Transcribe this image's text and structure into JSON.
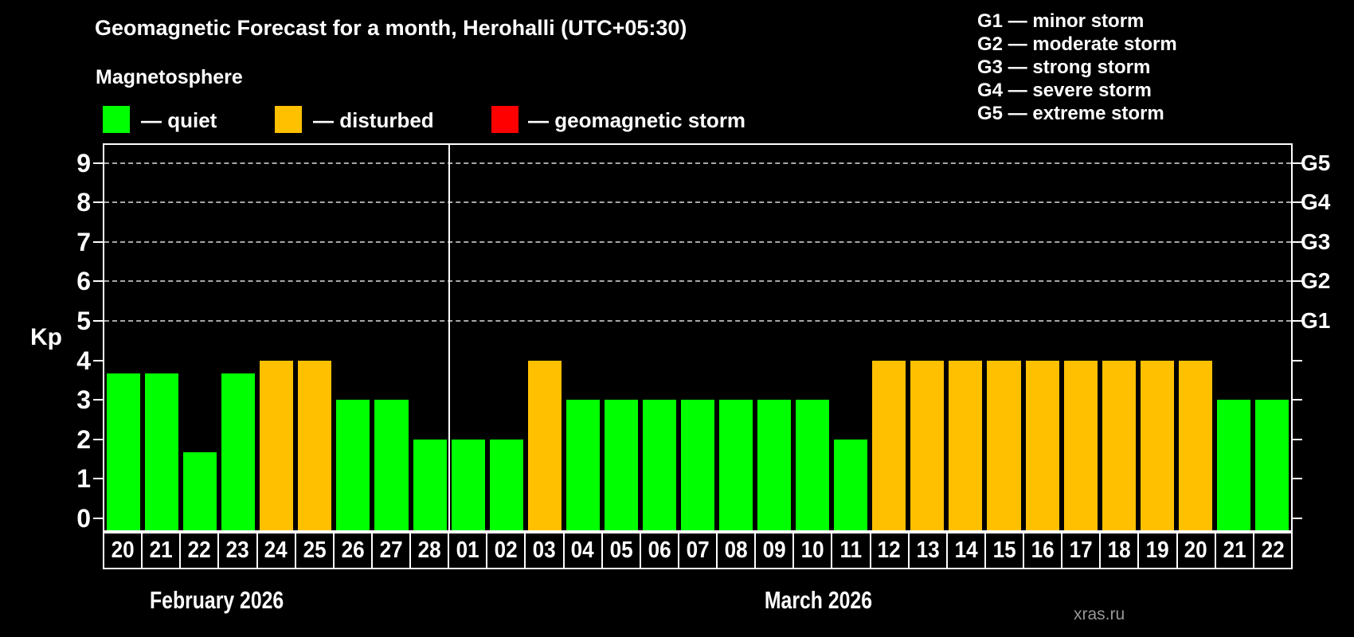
{
  "title": "Geomagnetic Forecast for a month, Herohalli (UTC+05:30)",
  "subtitle": "Magnetosphere",
  "legend": {
    "items": [
      {
        "key": "quiet",
        "label": "— quiet",
        "color": "#00ff00"
      },
      {
        "key": "disturbed",
        "label": "— disturbed",
        "color": "#ffc000"
      },
      {
        "key": "storm",
        "label": "— geomagnetic storm",
        "color": "#ff0000"
      }
    ]
  },
  "storm_scale": [
    "G1 — minor storm",
    "G2 — moderate storm",
    "G3 — strong storm",
    "G4 — severe storm",
    "G5 — extreme storm"
  ],
  "watermark": "xras.ru",
  "chart_data": {
    "type": "bar",
    "title": "Geomagnetic Forecast for a month, Herohalli (UTC+05:30)",
    "ylabel": "Kp",
    "ylim": [
      0,
      9
    ],
    "yticks": [
      0,
      1,
      2,
      3,
      4,
      5,
      6,
      7,
      8,
      9
    ],
    "gridlines": [
      5,
      6,
      7,
      8,
      9
    ],
    "grid_style": "dashed",
    "legend_position": "top",
    "right_axis_labels": [
      {
        "level": 5,
        "label": "G1"
      },
      {
        "level": 6,
        "label": "G2"
      },
      {
        "level": 7,
        "label": "G3"
      },
      {
        "level": 8,
        "label": "G4"
      },
      {
        "level": 9,
        "label": "G5"
      }
    ],
    "months": [
      {
        "label": "February 2026",
        "days": 9
      },
      {
        "label": "March 2026",
        "days": 22
      }
    ],
    "categories": [
      "20",
      "21",
      "22",
      "23",
      "24",
      "25",
      "26",
      "27",
      "28",
      "01",
      "02",
      "03",
      "04",
      "05",
      "06",
      "07",
      "08",
      "09",
      "10",
      "11",
      "12",
      "13",
      "14",
      "15",
      "16",
      "17",
      "18",
      "19",
      "20",
      "21",
      "22"
    ],
    "values": [
      3.67,
      3.67,
      1.67,
      3.67,
      4,
      4,
      3,
      3,
      2,
      2,
      2,
      4,
      3,
      3,
      3,
      3,
      3,
      3,
      3,
      2,
      4,
      4,
      4,
      4,
      4,
      4,
      4,
      4,
      4,
      3,
      3
    ],
    "statuses": [
      "quiet",
      "quiet",
      "quiet",
      "quiet",
      "disturbed",
      "disturbed",
      "quiet",
      "quiet",
      "quiet",
      "quiet",
      "quiet",
      "disturbed",
      "quiet",
      "quiet",
      "quiet",
      "quiet",
      "quiet",
      "quiet",
      "quiet",
      "quiet",
      "disturbed",
      "disturbed",
      "disturbed",
      "disturbed",
      "disturbed",
      "disturbed",
      "disturbed",
      "disturbed",
      "disturbed",
      "quiet",
      "quiet"
    ],
    "colors": {
      "quiet": "#00ff00",
      "disturbed": "#ffc000",
      "storm": "#ff0000"
    }
  }
}
